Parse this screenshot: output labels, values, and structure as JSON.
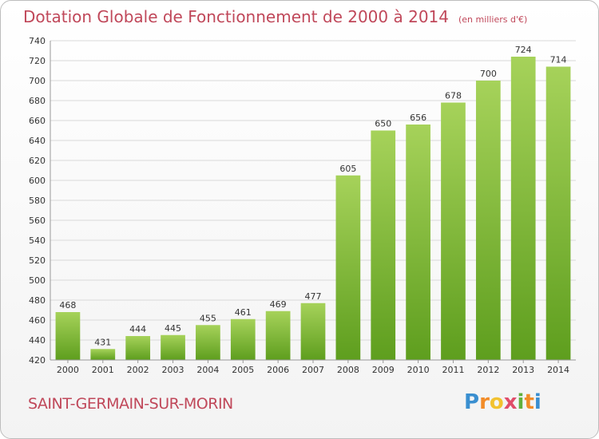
{
  "title": "Dotation Globale de Fonctionnement de 2000 à 2014",
  "unit_note": "(en milliers d'€)",
  "commune": "SAINT-GERMAIN-SUR-MORIN",
  "logo": {
    "letters": [
      "P",
      "r",
      "o",
      "x",
      "i",
      "t",
      "i"
    ],
    "colors": [
      "#3a8fd0",
      "#f28c28",
      "#f2c230",
      "#e04d6a",
      "#62b03d",
      "#f28c28",
      "#3a8fd0"
    ]
  },
  "colors": {
    "title": "#c0485a",
    "bar_top": "#a6d25a",
    "bar_bottom": "#5e9e1e",
    "grid": "#d9d9d9",
    "axis_text": "#333333"
  },
  "chart_data": {
    "type": "bar",
    "title": "Dotation Globale de Fonctionnement de 2000 à 2014",
    "categories": [
      "2000",
      "2001",
      "2002",
      "2003",
      "2004",
      "2005",
      "2006",
      "2007",
      "2008",
      "2009",
      "2010",
      "2011",
      "2012",
      "2013",
      "2014"
    ],
    "values": [
      468,
      431,
      444,
      445,
      455,
      461,
      469,
      477,
      605,
      650,
      656,
      678,
      700,
      724,
      714
    ],
    "ylim": [
      420,
      740
    ],
    "yticks": [
      420,
      440,
      460,
      480,
      500,
      520,
      540,
      560,
      580,
      600,
      620,
      640,
      660,
      680,
      700,
      720,
      740
    ],
    "grid": true,
    "xlabel": "",
    "ylabel": ""
  }
}
